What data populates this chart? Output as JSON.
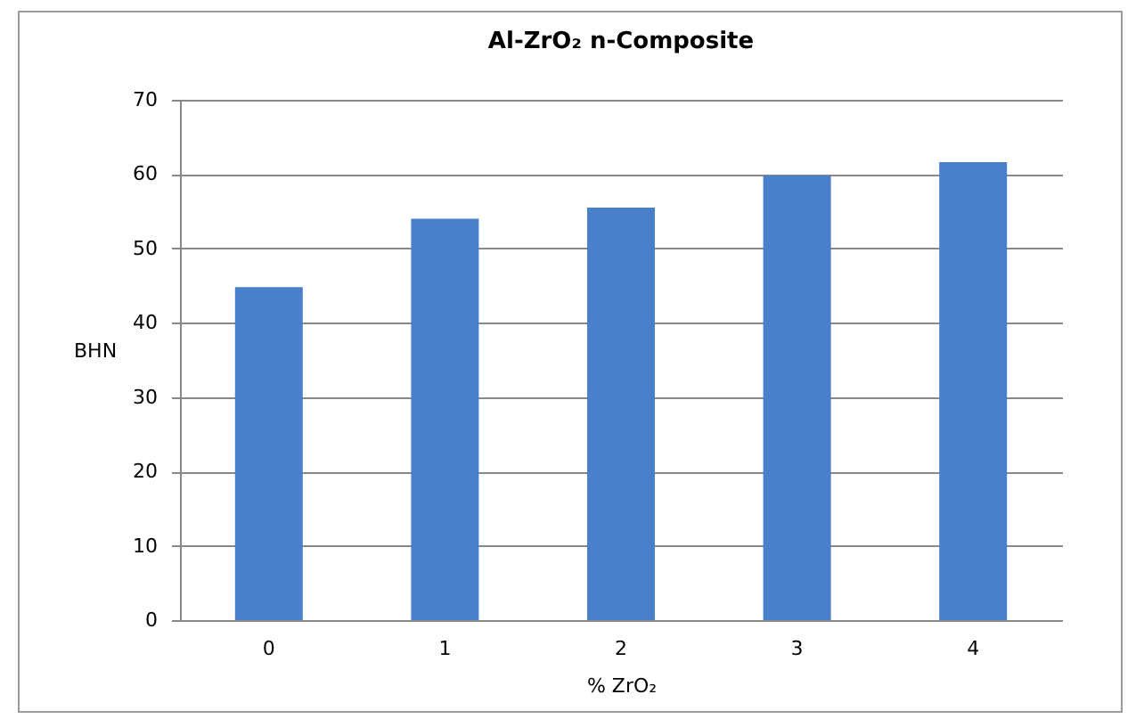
{
  "chart_data": {
    "type": "bar",
    "title": "Al-ZrO₂ n-Composite",
    "xlabel": "% ZrO₂",
    "ylabel": "BHN",
    "categories": [
      "0",
      "1",
      "2",
      "3",
      "4"
    ],
    "values": [
      44.8,
      54,
      55.5,
      59.8,
      61.6
    ],
    "color": "#4a7fcc",
    "ylim": [
      0,
      70
    ],
    "yticks": [
      0,
      10,
      20,
      30,
      40,
      50,
      60,
      70
    ],
    "grid": "y"
  }
}
